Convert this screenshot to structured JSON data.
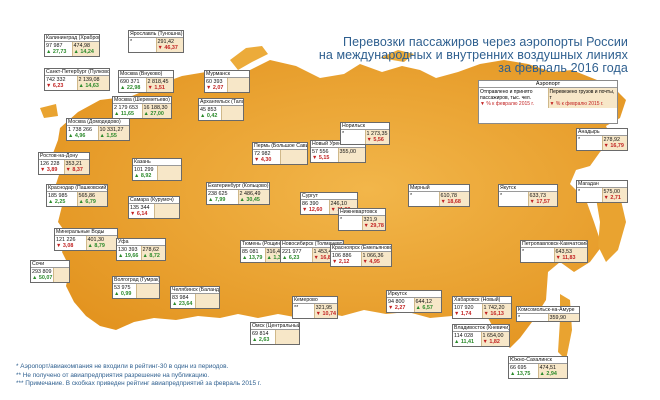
{
  "title": {
    "line1": "Перевозки пассажиров через аэропорты России",
    "line2": "на международных и внутренних воздушных линиях",
    "line3": "за февраль 2016 года"
  },
  "legend": {
    "header": "Аэропорт",
    "left_text": "Отправлено и принято пассажиров, тыс. чел.",
    "left_change": "% к февралю 2015 г.",
    "right_text": "Перевезено грузов и почты, т",
    "right_change": "% к февралю 2015 г."
  },
  "airports": [
    {
      "name": "Калининград (Храброво)",
      "v1": "97 987",
      "c1": "27,73",
      "d1": "up",
      "v2": "474,98",
      "c2": "14,24",
      "d2": "up"
    },
    {
      "name": "Ярославль (Туношна)",
      "v1": "*",
      "c1": "",
      "d1": "",
      "v2": "291,42",
      "c2": "46,37",
      "d2": "down"
    },
    {
      "name": "Санкт-Петербург (Пулково)",
      "v1": "742 332",
      "c1": "6,23",
      "d1": "down",
      "v2": "2 139,08",
      "c2": "14,63",
      "d2": "up"
    },
    {
      "name": "Москва (Внуково)",
      "v1": "690 371",
      "c1": "22,98",
      "d1": "up",
      "v2": "2 818,45",
      "c2": "1,51",
      "d2": "down"
    },
    {
      "name": "Мурманск",
      "v1": "60 393",
      "c1": "2,07",
      "d1": "down",
      "v2": "",
      "c2": "",
      "d2": ""
    },
    {
      "name": "Москва (Шереметьево)",
      "v1": "2 179 653",
      "c1": "11,65",
      "d1": "up",
      "v2": "16 188,30",
      "c2": "27,00",
      "d2": "up"
    },
    {
      "name": "Архангельск (Талаги)",
      "v1": "45 853",
      "c1": "0,42",
      "d1": "up",
      "v2": "",
      "c2": "",
      "d2": ""
    },
    {
      "name": "Москва (Домодедово)",
      "v1": "1 738 266",
      "c1": "4,96",
      "d1": "up",
      "v2": "10 331,27",
      "c2": "1,55",
      "d2": "up"
    },
    {
      "name": "Ростов-на-Дону",
      "v1": "126 228",
      "c1": "3,89",
      "d1": "down",
      "v2": "353,21",
      "c2": "8,37",
      "d2": "down"
    },
    {
      "name": "Краснодар (Пашковский)",
      "v1": "185 985",
      "c1": "2,25",
      "d1": "up",
      "v2": "565,86",
      "c2": "6,79",
      "d2": "up"
    },
    {
      "name": "Минеральные Воды",
      "v1": "121 226",
      "c1": "3,08",
      "d1": "down",
      "v2": "401,30",
      "c2": "8,79",
      "d2": "up"
    },
    {
      "name": "Сочи",
      "v1": "293 809",
      "c1": "50,07",
      "d1": "up",
      "v2": "",
      "c2": "",
      "d2": ""
    },
    {
      "name": "Казань",
      "v1": "101 299",
      "c1": "8,92",
      "d1": "up",
      "v2": "",
      "c2": "",
      "d2": ""
    },
    {
      "name": "Самара (Курумоч)",
      "v1": "135 344",
      "c1": "6,14",
      "d1": "down",
      "v2": "",
      "c2": "",
      "d2": ""
    },
    {
      "name": "Уфа",
      "v1": "130 393",
      "c1": "19,66",
      "d1": "up",
      "v2": "278,62",
      "c2": "8,72",
      "d2": "up"
    },
    {
      "name": "Волгоград (Гумрак)",
      "v1": "53 975",
      "c1": "0,99",
      "d1": "up",
      "v2": "",
      "c2": "",
      "d2": ""
    },
    {
      "name": "Пермь (Большое Савино)",
      "v1": "72 982",
      "c1": "4,30",
      "d1": "down",
      "v2": "",
      "c2": "",
      "d2": ""
    },
    {
      "name": "Екатеринбург (Кольцово)",
      "v1": "238 625",
      "c1": "7,99",
      "d1": "up",
      "v2": "2 486,49",
      "c2": "30,45",
      "d2": "up"
    },
    {
      "name": "Тюмень (Рощино)",
      "v1": "85 081",
      "c1": "13,79",
      "d1": "up",
      "v2": "316,48",
      "c2": "1,35",
      "d2": "up"
    },
    {
      "name": "Челябинск (Баландино)",
      "v1": "83 984",
      "c1": "23,64",
      "d1": "up",
      "v2": "",
      "c2": "",
      "d2": ""
    },
    {
      "name": "Омск (Центральный)",
      "v1": "69 814",
      "c1": "2,63",
      "d1": "up",
      "v2": "",
      "c2": "",
      "d2": ""
    },
    {
      "name": "Новосибирск (Толмачево)",
      "v1": "221 977",
      "c1": "6,23",
      "d1": "up",
      "v2": "1 453,40",
      "c2": "16,81",
      "d2": "down"
    },
    {
      "name": "Кемерово",
      "v1": "**",
      "c1": "",
      "d1": "",
      "v2": "321,95",
      "c2": "10,74",
      "d2": "down"
    },
    {
      "name": "Новый Уренгой",
      "v1": "57 556",
      "c1": "5,15",
      "d1": "down",
      "v2": "355,00",
      "c2": "",
      "d2": ""
    },
    {
      "name": "Сургут",
      "v1": "86 390",
      "c1": "12,60",
      "d1": "down",
      "v2": "246,10",
      "c2": "11,89",
      "d2": "down"
    },
    {
      "name": "Нижневартовск",
      "v1": "*",
      "c1": "",
      "d1": "",
      "v2": "321,9",
      "c2": "29,78",
      "d2": "down"
    },
    {
      "name": "Норильск",
      "v1": "*",
      "c1": "",
      "d1": "",
      "v2": "1 273,35",
      "c2": "5,56",
      "d2": "down"
    },
    {
      "name": "Красноярск (Емельяново)",
      "v1": "106 886",
      "c1": "2,12",
      "d1": "down",
      "v2": "1 066,36",
      "c2": "4,95",
      "d2": "down"
    },
    {
      "name": "Иркутск",
      "v1": "94 800",
      "c1": "2,27",
      "d1": "down",
      "v2": "644,12",
      "c2": "6,57",
      "d2": "up"
    },
    {
      "name": "Мирный",
      "v1": "*",
      "c1": "",
      "d1": "",
      "v2": "610,78",
      "c2": "18,68",
      "d2": "down"
    },
    {
      "name": "Якутск",
      "v1": "*",
      "c1": "",
      "d1": "",
      "v2": "633,73",
      "c2": "17,57",
      "d2": "down"
    },
    {
      "name": "Анадырь",
      "v1": "*",
      "c1": "",
      "d1": "",
      "v2": "278,92",
      "c2": "16,79",
      "d2": "down"
    },
    {
      "name": "Магадан",
      "v1": "*",
      "c1": "",
      "d1": "",
      "v2": "575,00",
      "c2": "2,71",
      "d2": "down"
    },
    {
      "name": "Петропавловск-Камчатский",
      "v1": "*",
      "c1": "",
      "d1": "",
      "v2": "643,53",
      "c2": "11,83",
      "d2": "down"
    },
    {
      "name": "Хабаровск (Новый)",
      "v1": "107 920",
      "c1": "1,74",
      "d1": "down",
      "v2": "1 742,20",
      "c2": "16,13",
      "d2": "down"
    },
    {
      "name": "Комсомольск-на-Амуре",
      "v1": "*",
      "c1": "",
      "d1": "",
      "v2": "359,90",
      "c2": "",
      "d2": ""
    },
    {
      "name": "Владивосток (Кневичи)",
      "v1": "114 028",
      "c1": "11,41",
      "d1": "up",
      "v2": "1 654,00",
      "c2": "1,82",
      "d2": "down"
    },
    {
      "name": "Южно-Сахалинск",
      "v1": "66 695",
      "c1": "13,75",
      "d1": "up",
      "v2": "474,51",
      "c2": "2,94",
      "d2": "up"
    }
  ],
  "footnotes": {
    "n1": "* Аэропорт/авиакомпания не входили в рейтинг-30 в один из периодов.",
    "n2": "** Не получено от авиапредприятия разрешение на публикацию.",
    "n3": "*** Примечание. В скобках приведен рейтинг авиапредприятий за февраль 2015 г."
  },
  "colors": {
    "map_fill": "#e8a22c",
    "map_fill_light": "#f2c06a",
    "up": "#2a8a2a",
    "down": "#c22222",
    "title": "#2e5f8f"
  }
}
